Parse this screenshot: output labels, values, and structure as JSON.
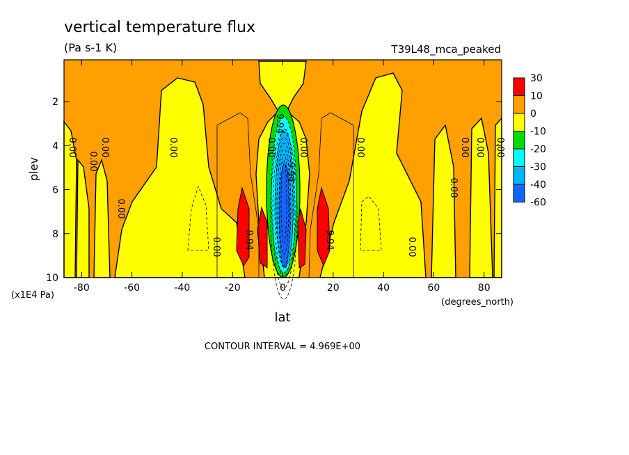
{
  "chart_data": {
    "type": "heatmap",
    "title": "vertical temperature flux",
    "units": "(Pa s-1 K)",
    "dataset": "T39L48_mca_peaked",
    "xlabel": "lat",
    "xunits": "(degrees_north)",
    "ylabel": "plev",
    "yunits": "(x1E4 Pa)",
    "xlim": [
      -87,
      87
    ],
    "ylim": [
      10,
      0.1
    ],
    "x_ticks": [
      -80,
      -60,
      -40,
      -20,
      0,
      20,
      40,
      60,
      80
    ],
    "y_ticks": [
      2,
      4,
      6,
      8,
      10
    ],
    "contour_interval": "CONTOUR INTERVAL = 4.969E+00",
    "contour_labels": [
      "0.00",
      "9.94",
      "-9.94"
    ],
    "legend": {
      "placement": "right",
      "levels": [
        "30",
        "10",
        "0",
        "-10",
        "-20",
        "-30",
        "-40",
        "-60"
      ],
      "colors": [
        "#ff0000",
        "#ffa000",
        "#ffff00",
        "#00dc00",
        "#00ffff",
        "#00b4ff",
        "#1464ff"
      ]
    }
  }
}
